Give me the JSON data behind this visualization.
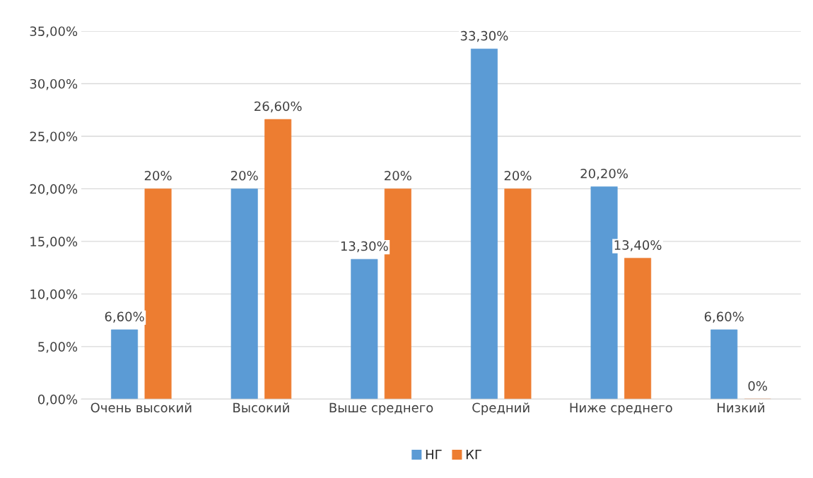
{
  "chart_data": {
    "type": "bar",
    "categories": [
      "Очень высокий",
      "Высокий",
      "Выше среднего",
      "Средний",
      "Ниже среднего",
      "Низкий"
    ],
    "series": [
      {
        "name": "НГ",
        "color": "#5b9bd5",
        "values": [
          6.6,
          20,
          13.3,
          33.3,
          20.2,
          6.6
        ],
        "value_labels": [
          "6,60%",
          "20%",
          "13,30%",
          "33,30%",
          "20,20%",
          "6,60%"
        ]
      },
      {
        "name": "КГ",
        "color": "#ed7d31",
        "values": [
          20,
          26.6,
          20,
          20,
          13.4,
          0
        ],
        "value_labels": [
          "20%",
          "26,60%",
          "20%",
          "20%",
          "13,40%",
          "0%"
        ]
      }
    ],
    "ylim": [
      0,
      35
    ],
    "yticks": [
      {
        "value": 0,
        "label": "0,00%"
      },
      {
        "value": 5,
        "label": "5,00%"
      },
      {
        "value": 10,
        "label": "10,00%"
      },
      {
        "value": 15,
        "label": "15,00%"
      },
      {
        "value": 20,
        "label": "20,00%"
      },
      {
        "value": 25,
        "label": "25,00%"
      },
      {
        "value": 30,
        "label": "30,00%"
      },
      {
        "value": 35,
        "label": "35,00%"
      }
    ],
    "grid": "y",
    "legend": "bottom"
  }
}
